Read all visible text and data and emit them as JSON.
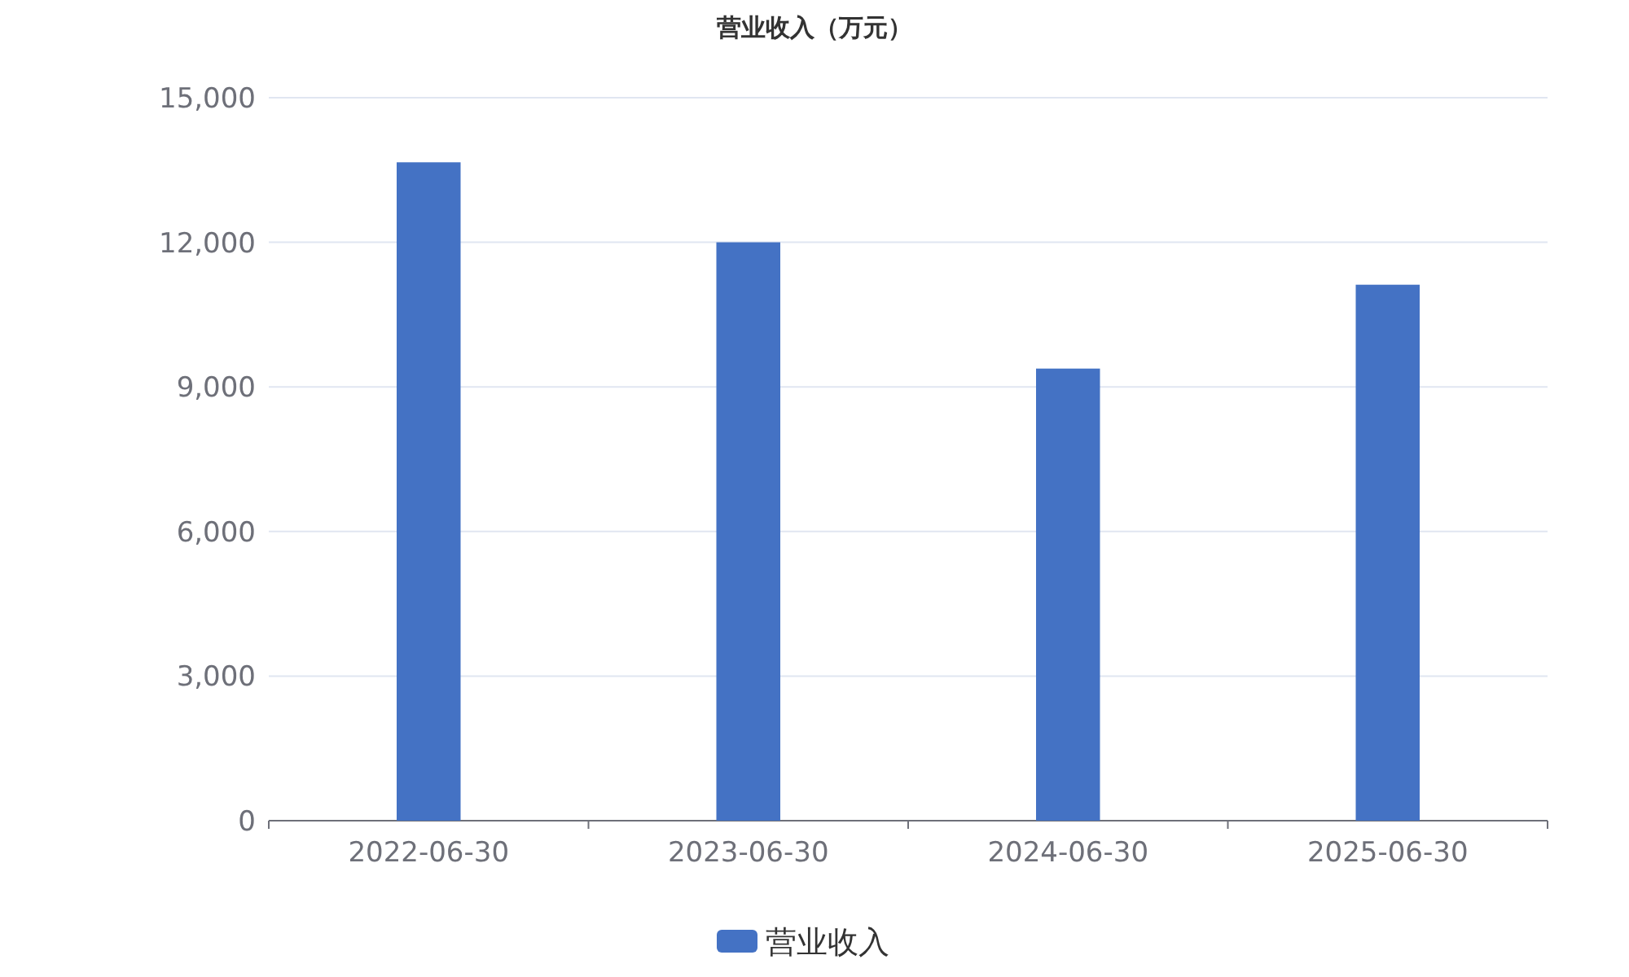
{
  "chart_data": {
    "type": "bar",
    "title": "营业收入（万元）",
    "categories": [
      "2022-06-30",
      "2023-06-30",
      "2024-06-30",
      "2025-06-30"
    ],
    "series": [
      {
        "name": "营业收入",
        "color": "#4472c4",
        "values": [
          13660,
          12000,
          9380,
          11120
        ]
      }
    ],
    "ylim": [
      0,
      15000
    ],
    "yticks": [
      {
        "value": 0,
        "label": "0"
      },
      {
        "value": 3000,
        "label": "3,000"
      },
      {
        "value": 6000,
        "label": "6,000"
      },
      {
        "value": 9000,
        "label": "9,000"
      },
      {
        "value": 12000,
        "label": "12,000"
      },
      {
        "value": 15000,
        "label": "15,000"
      }
    ],
    "grid": "y",
    "legend": "bottom"
  }
}
